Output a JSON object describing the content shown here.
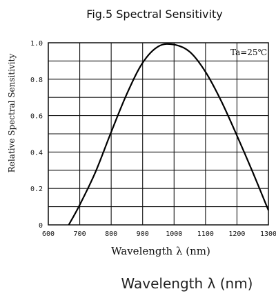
{
  "chart_data": {
    "type": "line",
    "title": "Fig.5  Spectral  Sensitivity",
    "xlabel": "Wavelength  λ  (nm)",
    "ylabel": "Relative Spectral Sensitivity",
    "annotation": "Ta=25℃",
    "caption": "Wavelength  λ  (nm)",
    "xlim": [
      600,
      1300
    ],
    "ylim": [
      0,
      1.0
    ],
    "grid": true,
    "x_ticks": [
      "600",
      "700",
      "800",
      "900",
      "1000",
      "1100",
      "1200",
      "1300"
    ],
    "y_ticks": [
      "0",
      "0.2",
      "0.4",
      "0.6",
      "0.8",
      "1.0"
    ],
    "y_tick_values": [
      0,
      0.2,
      0.4,
      0.6,
      0.8,
      1.0
    ],
    "x_tick_values": [
      600,
      700,
      800,
      900,
      1000,
      1100,
      1200,
      1300
    ],
    "series": [
      {
        "x": [
          665,
          700,
          750,
          800,
          850,
          900,
          950,
          1000,
          1050,
          1100,
          1150,
          1200,
          1250,
          1300
        ],
        "y": [
          0.0,
          0.11,
          0.29,
          0.51,
          0.72,
          0.89,
          0.98,
          0.99,
          0.95,
          0.84,
          0.68,
          0.49,
          0.29,
          0.08
        ]
      }
    ]
  }
}
